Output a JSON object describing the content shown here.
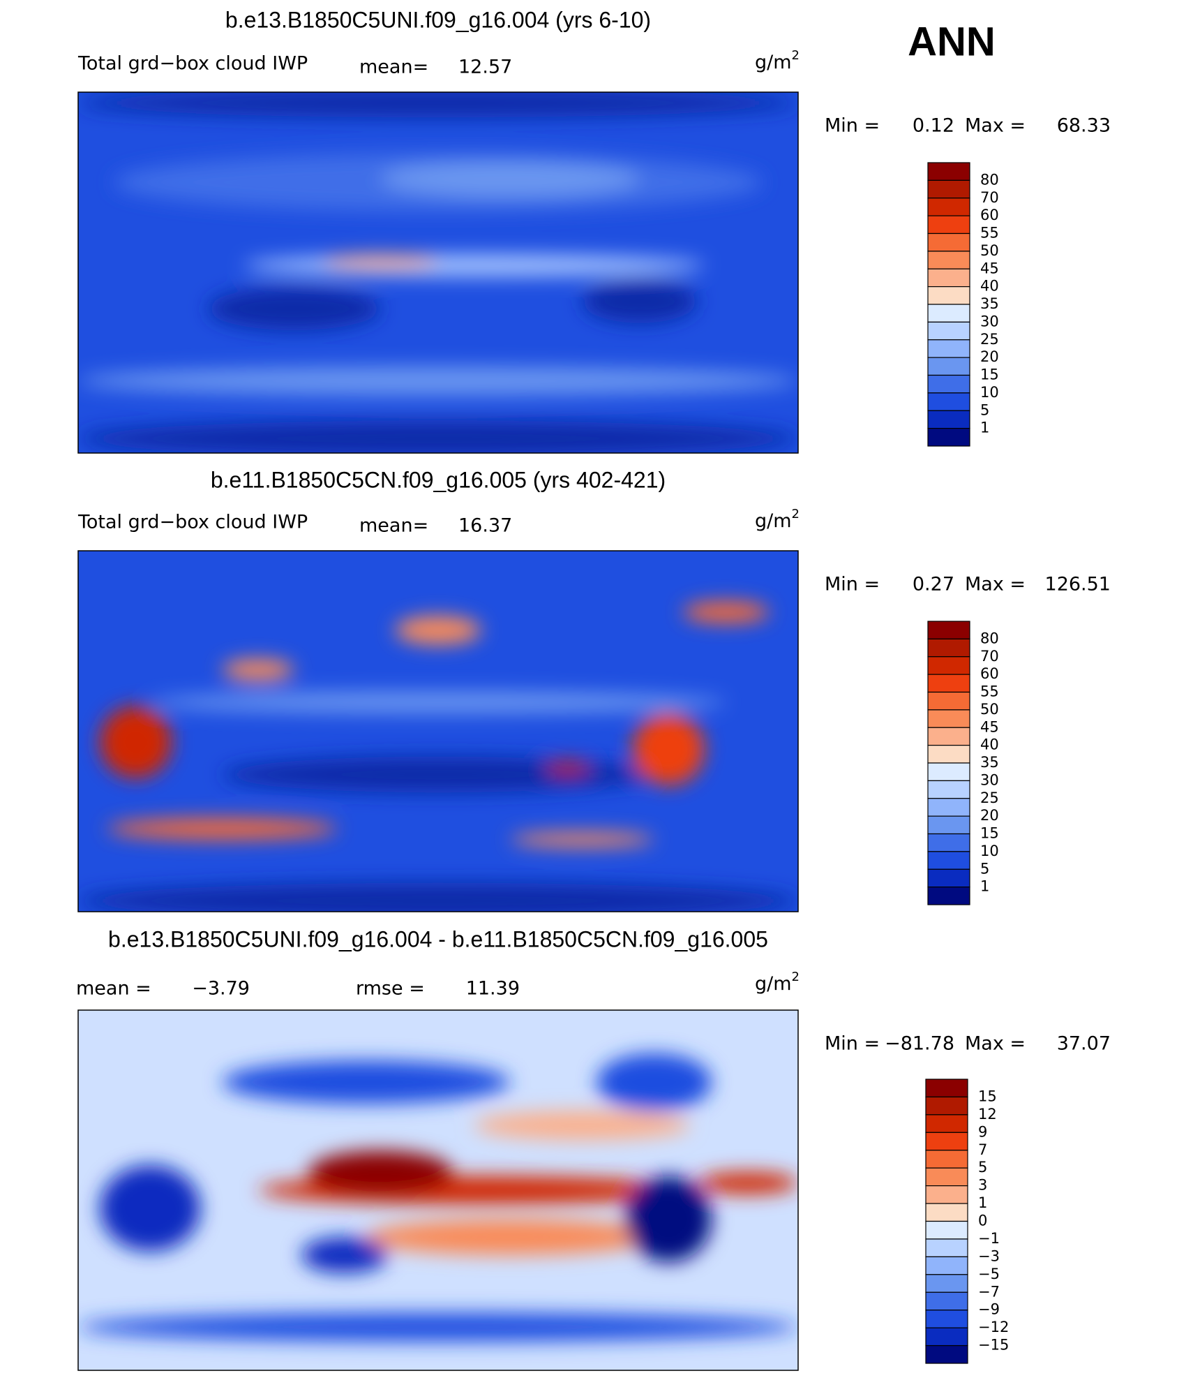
{
  "header": {
    "season": "ANN"
  },
  "colorbar_colors": [
    "#8b0000",
    "#b01a00",
    "#d02800",
    "#ee4010",
    "#f56b35",
    "#f98b58",
    "#fbb08c",
    "#fcdcc4",
    "#dcebff",
    "#b8d2ff",
    "#90b4fb",
    "#6a96f0",
    "#3f6ee8",
    "#1f4ee0",
    "#0a2cc0",
    "#000a80"
  ],
  "panels": [
    {
      "title": "b.e13.B1850C5UNI.f09_g16.004 (yrs 6-10)",
      "variable": "Total grd−box cloud IWP",
      "stats": [
        {
          "label": "mean=",
          "value": 12.57
        }
      ],
      "units": "g/m",
      "units_exponent": "2",
      "min_label": "Min =",
      "min": 0.12,
      "max_label": "Max =",
      "max": 68.33,
      "colorbar_labels": [
        80,
        70,
        60,
        55,
        50,
        45,
        40,
        35,
        30,
        25,
        20,
        15,
        10,
        5,
        1
      ]
    },
    {
      "title": "b.e11.B1850C5CN.f09_g16.005 (yrs 402-421)",
      "variable": "Total grd−box cloud IWP",
      "stats": [
        {
          "label": "mean=",
          "value": 16.37
        }
      ],
      "units": "g/m",
      "units_exponent": "2",
      "min_label": "Min =",
      "min": 0.27,
      "max_label": "Max =",
      "max": 126.51,
      "colorbar_labels": [
        80,
        70,
        60,
        55,
        50,
        45,
        40,
        35,
        30,
        25,
        20,
        15,
        10,
        5,
        1
      ]
    },
    {
      "title": "b.e13.B1850C5UNI.f09_g16.004 - b.e11.B1850C5CN.f09_g16.005",
      "stats": [
        {
          "label": "mean =",
          "value": "−3.79"
        },
        {
          "label": "rmse =",
          "value": 11.39
        }
      ],
      "units": "g/m",
      "units_exponent": "2",
      "min_label": "Min =",
      "min": "−81.78",
      "max_label": "Max =",
      "max": 37.07,
      "colorbar_labels": [
        15,
        12,
        9,
        7,
        5,
        3,
        1,
        0,
        "−1",
        "−3",
        "−5",
        "−7",
        "−9",
        "−12",
        "−15"
      ]
    }
  ]
}
